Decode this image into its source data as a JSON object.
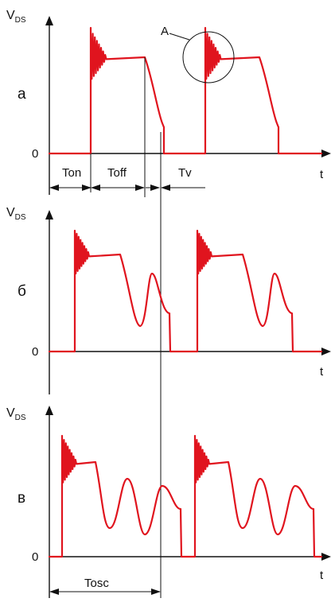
{
  "colors": {
    "waveform": "#e0141e",
    "axis": "#111111",
    "background": "#ffffff"
  },
  "axis_y_label_main": "V",
  "axis_y_label_sub": "DS",
  "axis_x_label": "t",
  "zero_label": "0",
  "panels": [
    {
      "id": "a",
      "label": "а",
      "kind": "square"
    },
    {
      "id": "b",
      "label": "б",
      "kind": "one-oscillation"
    },
    {
      "id": "v",
      "label": "в",
      "kind": "two-oscillations"
    }
  ],
  "callout_label": "A",
  "intervals": {
    "ton": "Ton",
    "toff": "Toff",
    "tv": "Tv",
    "tosc": "Tosc"
  }
}
